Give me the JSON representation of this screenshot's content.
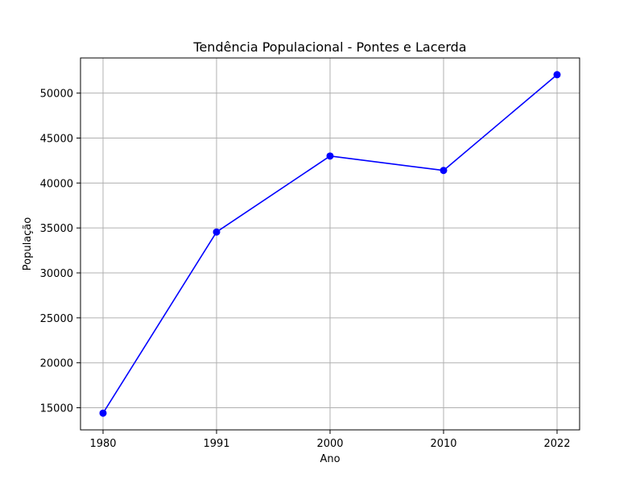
{
  "chart_data": {
    "type": "line",
    "title": "Tendência Populacional - Pontes e Lacerda",
    "xlabel": "Ano",
    "ylabel": "População",
    "categories": [
      "1980",
      "1991",
      "2000",
      "2010",
      "2022"
    ],
    "series": [
      {
        "values": [
          14400,
          34550,
          43000,
          41400,
          52050
        ],
        "color": "#0000ff",
        "marker": "circle"
      }
    ],
    "yticks": [
      15000,
      20000,
      25000,
      30000,
      35000,
      40000,
      45000,
      50000
    ],
    "ylim": [
      12540,
      53910
    ],
    "grid": true,
    "colors": {
      "line": "#0000ff",
      "grid": "#b0b0b0",
      "axis": "#000000"
    }
  }
}
